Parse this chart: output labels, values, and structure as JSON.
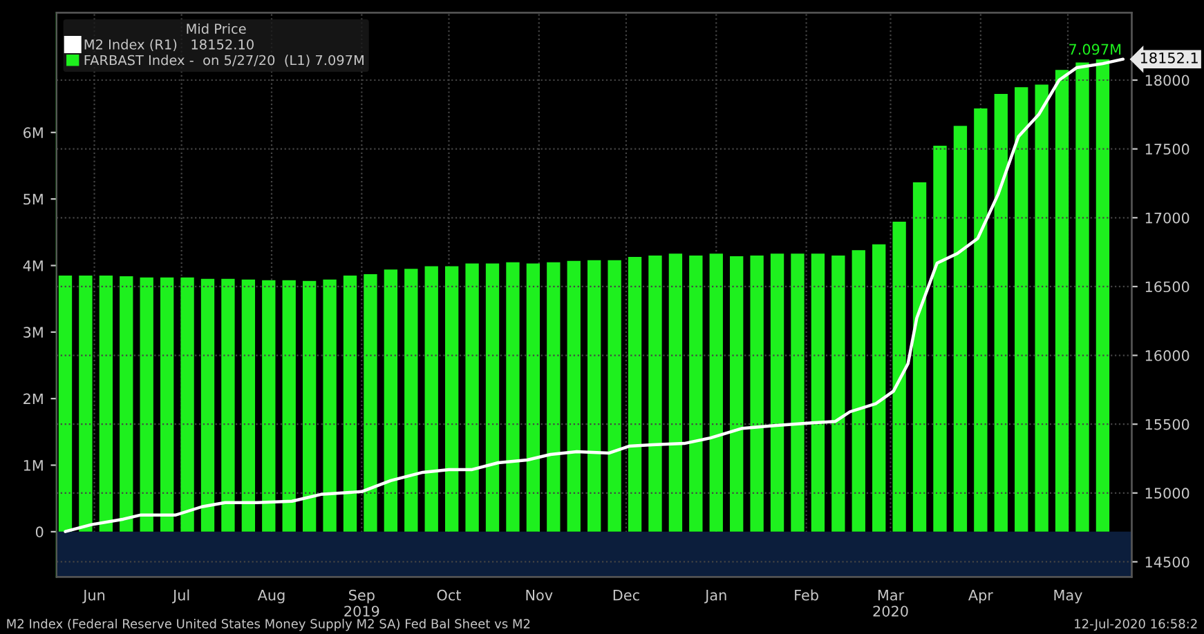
{
  "chart_data": {
    "type": "bar",
    "legend_title": "Mid Price",
    "x": [
      "2019-06-05",
      "2019-06-12",
      "2019-06-19",
      "2019-06-26",
      "2019-07-03",
      "2019-07-10",
      "2019-07-17",
      "2019-07-24",
      "2019-07-31",
      "2019-08-07",
      "2019-08-14",
      "2019-08-21",
      "2019-08-28",
      "2019-09-04",
      "2019-09-11",
      "2019-09-18",
      "2019-09-25",
      "2019-10-02",
      "2019-10-09",
      "2019-10-16",
      "2019-10-23",
      "2019-10-30",
      "2019-11-06",
      "2019-11-13",
      "2019-11-20",
      "2019-11-27",
      "2019-12-04",
      "2019-12-11",
      "2019-12-18",
      "2019-12-25",
      "2020-01-01",
      "2020-01-08",
      "2020-01-15",
      "2020-01-22",
      "2020-01-29",
      "2020-02-05",
      "2020-02-12",
      "2020-02-19",
      "2020-02-26",
      "2020-03-04",
      "2020-03-11",
      "2020-03-18",
      "2020-03-25",
      "2020-04-01",
      "2020-04-08",
      "2020-04-15",
      "2020-04-22",
      "2020-04-29",
      "2020-05-06",
      "2020-05-13",
      "2020-05-20",
      "2020-05-27"
    ],
    "series": [
      {
        "name": "M2 Index (R1)   18152.10",
        "type": "line",
        "axis": "y2",
        "color": "#ffffff",
        "x": [
          "2019-06-05",
          "2019-06-14",
          "2019-06-25",
          "2019-07-01",
          "2019-07-13",
          "2019-07-22",
          "2019-07-30",
          "2019-08-10",
          "2019-08-22",
          "2019-09-01",
          "2019-09-15",
          "2019-09-25",
          "2019-10-06",
          "2019-10-15",
          "2019-10-23",
          "2019-11-01",
          "2019-11-11",
          "2019-11-19",
          "2019-11-28",
          "2019-12-09",
          "2019-12-16",
          "2019-12-24",
          "2020-01-04",
          "2020-01-13",
          "2020-01-24",
          "2020-02-04",
          "2020-02-17",
          "2020-02-25",
          "2020-03-01",
          "2020-03-10",
          "2020-03-16",
          "2020-03-21",
          "2020-03-24",
          "2020-03-31",
          "2020-04-07",
          "2020-04-14",
          "2020-04-21",
          "2020-04-28",
          "2020-05-05",
          "2020-05-12",
          "2020-05-18",
          "2020-05-27",
          "2020-06-03"
        ],
        "values": [
          14720,
          14770,
          14810,
          14840,
          14840,
          14900,
          14930,
          14930,
          14940,
          14990,
          15010,
          15090,
          15150,
          15170,
          15170,
          15220,
          15240,
          15280,
          15300,
          15290,
          15340,
          15350,
          15360,
          15400,
          15470,
          15490,
          15510,
          15520,
          15590,
          15650,
          15740,
          15940,
          16270,
          16670,
          16740,
          16850,
          17170,
          17590,
          17750,
          18000,
          18090,
          18120,
          18152.1
        ],
        "value_labels": [
          null,
          null,
          null,
          null,
          null,
          null,
          null,
          null,
          null,
          null,
          null,
          null,
          null,
          null,
          null,
          null,
          null,
          null,
          null,
          null,
          null,
          null,
          null,
          null,
          null,
          null,
          null,
          null,
          null,
          null,
          null,
          null,
          null,
          null,
          null,
          null,
          null,
          null,
          null,
          null,
          null,
          null,
          "18152.1"
        ]
      },
      {
        "name": "FARBAST Index -  on 5/27/20  (L1) 7.097M",
        "color": "#1ef01e",
        "values": [
          3.85,
          3.85,
          3.85,
          3.84,
          3.82,
          3.82,
          3.82,
          3.8,
          3.8,
          3.79,
          3.78,
          3.78,
          3.77,
          3.79,
          3.85,
          3.87,
          3.94,
          3.95,
          3.99,
          3.99,
          4.03,
          4.03,
          4.05,
          4.03,
          4.05,
          4.07,
          4.08,
          4.08,
          4.13,
          4.15,
          4.18,
          4.15,
          4.18,
          4.14,
          4.15,
          4.18,
          4.18,
          4.18,
          4.15,
          4.23,
          4.32,
          4.66,
          5.25,
          5.8,
          6.1,
          6.36,
          6.58,
          6.68,
          6.72,
          6.94,
          7.05,
          7.097
        ],
        "value_labels": [
          null,
          null,
          null,
          null,
          null,
          null,
          null,
          null,
          null,
          null,
          null,
          null,
          null,
          null,
          null,
          null,
          null,
          null,
          null,
          null,
          null,
          null,
          null,
          null,
          null,
          null,
          null,
          null,
          null,
          null,
          null,
          null,
          null,
          null,
          null,
          null,
          null,
          null,
          null,
          null,
          null,
          null,
          null,
          null,
          null,
          null,
          null,
          null,
          null,
          null,
          null,
          "7.097M"
        ]
      }
    ],
    "xlim": [
      "2019-06-02",
      "2020-06-06"
    ],
    "xticks": [
      {
        "value": "2019-06-15",
        "label": "Jun"
      },
      {
        "value": "2019-07-15",
        "label": "Jul"
      },
      {
        "value": "2019-08-15",
        "label": "Aug"
      },
      {
        "value": "2019-09-15",
        "label": "Sep\n2019"
      },
      {
        "value": "2019-10-15",
        "label": "Oct"
      },
      {
        "value": "2019-11-15",
        "label": "Nov"
      },
      {
        "value": "2019-12-15",
        "label": "Dec"
      },
      {
        "value": "2020-01-15",
        "label": "Jan"
      },
      {
        "value": "2020-02-15",
        "label": "Feb"
      },
      {
        "value": "2020-03-15",
        "label": "Mar\n2020"
      },
      {
        "value": "2020-04-15",
        "label": "Apr"
      },
      {
        "value": "2020-05-15",
        "label": "May"
      }
    ],
    "ylim": [
      -0.68,
      7.8
    ],
    "yticks": [
      0,
      {
        "value": 1,
        "label": "1M"
      },
      {
        "value": 2,
        "label": "2M"
      },
      {
        "value": 3,
        "label": "3M"
      },
      {
        "value": 4,
        "label": "4M"
      },
      {
        "value": 5,
        "label": "5M"
      },
      {
        "value": 6,
        "label": "6M"
      }
    ],
    "y2lim": [
      14390,
      18490
    ],
    "y2ticks": [
      14500,
      15000,
      15500,
      16000,
      16500,
      17000,
      17500,
      18000
    ],
    "bands": [
      {
        "axis": "y",
        "from": -0.68,
        "to": 0,
        "color": "#0c1e3c"
      }
    ],
    "grid": true,
    "legend": "top left",
    "annotations": [
      "M2 Index (Federal Reserve United States Money Supply M2 SA) Fed Bal Sheet vs M2",
      "12-Jul-2020 16:58:2"
    ]
  }
}
